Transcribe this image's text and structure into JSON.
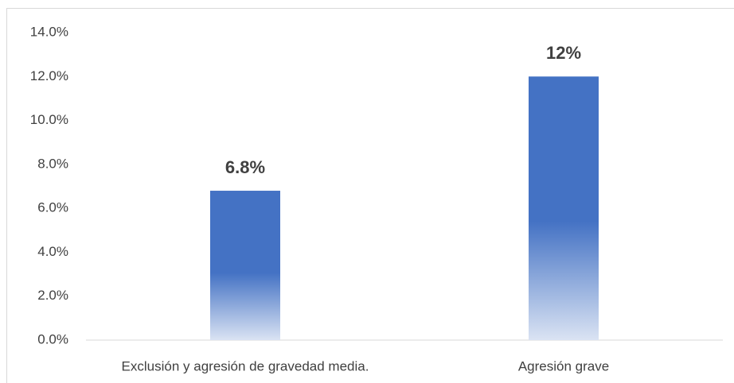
{
  "chart_data": {
    "type": "bar",
    "categories": [
      "Exclusión y agresión de gravedad media.",
      "Agresión grave"
    ],
    "values": [
      6.8,
      12
    ],
    "value_labels": [
      "6.8%",
      "12%"
    ],
    "color": "#4472c4",
    "ylim": [
      0,
      14
    ],
    "yticks": [
      {
        "value": 0,
        "label": "0.0%"
      },
      {
        "value": 2,
        "label": "2.0%"
      },
      {
        "value": 4,
        "label": "4.0%"
      },
      {
        "value": 6,
        "label": "6.0%"
      },
      {
        "value": 8,
        "label": "8.0%"
      },
      {
        "value": 10,
        "label": "10.0%"
      },
      {
        "value": 12,
        "label": "12.0%"
      },
      {
        "value": 14,
        "label": "14.0%"
      }
    ],
    "grid": false
  }
}
